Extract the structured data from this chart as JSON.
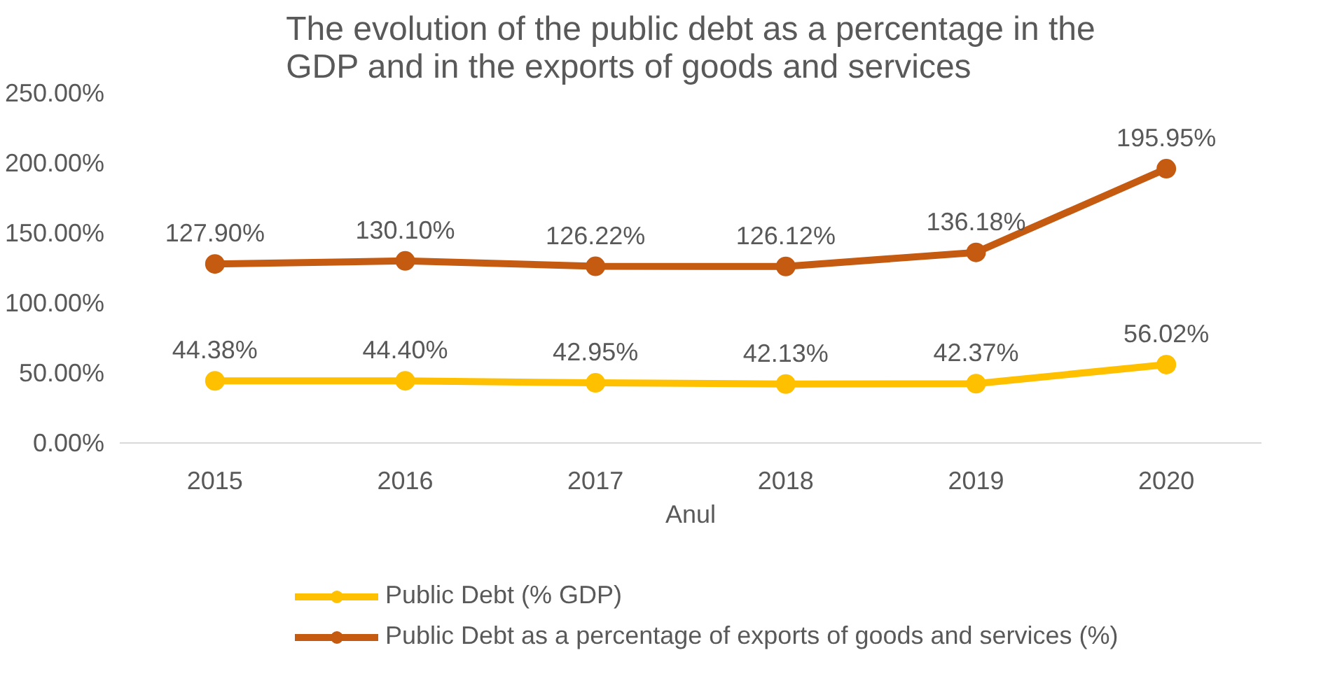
{
  "chart_data": {
    "type": "line",
    "title": "The evolution of the public debt as a percentage in the\nGDP and in the exports of goods and services",
    "xlabel": "Anul",
    "categories": [
      "2015",
      "2016",
      "2017",
      "2018",
      "2019",
      "2020"
    ],
    "series": [
      {
        "name": "Public Debt (% GDP)",
        "color": "#ffc000",
        "values": [
          44.38,
          44.4,
          42.95,
          42.13,
          42.37,
          56.02
        ],
        "value_labels": [
          "44.38%",
          "44.40%",
          "42.95%",
          "42.13%",
          "42.37%",
          "56.02%"
        ]
      },
      {
        "name": "Public Debt as a percentage of exports of goods and services (%)",
        "color": "#c55a11",
        "values": [
          127.9,
          130.1,
          126.22,
          126.12,
          136.18,
          195.95
        ],
        "value_labels": [
          "127.90%",
          "130.10%",
          "126.22%",
          "126.12%",
          "136.18%",
          "195.95%"
        ]
      }
    ],
    "ylim": [
      0,
      250
    ],
    "yticks": [
      {
        "value": 0,
        "label": "0.00%"
      },
      {
        "value": 50,
        "label": "50.00%"
      },
      {
        "value": 100,
        "label": "100.00%"
      },
      {
        "value": 150,
        "label": "150.00%"
      },
      {
        "value": 200,
        "label": "200.00%"
      },
      {
        "value": 250,
        "label": "250.00%"
      }
    ],
    "grid": false,
    "legend": "bottom",
    "marker": "circle",
    "line_style": "solid"
  }
}
